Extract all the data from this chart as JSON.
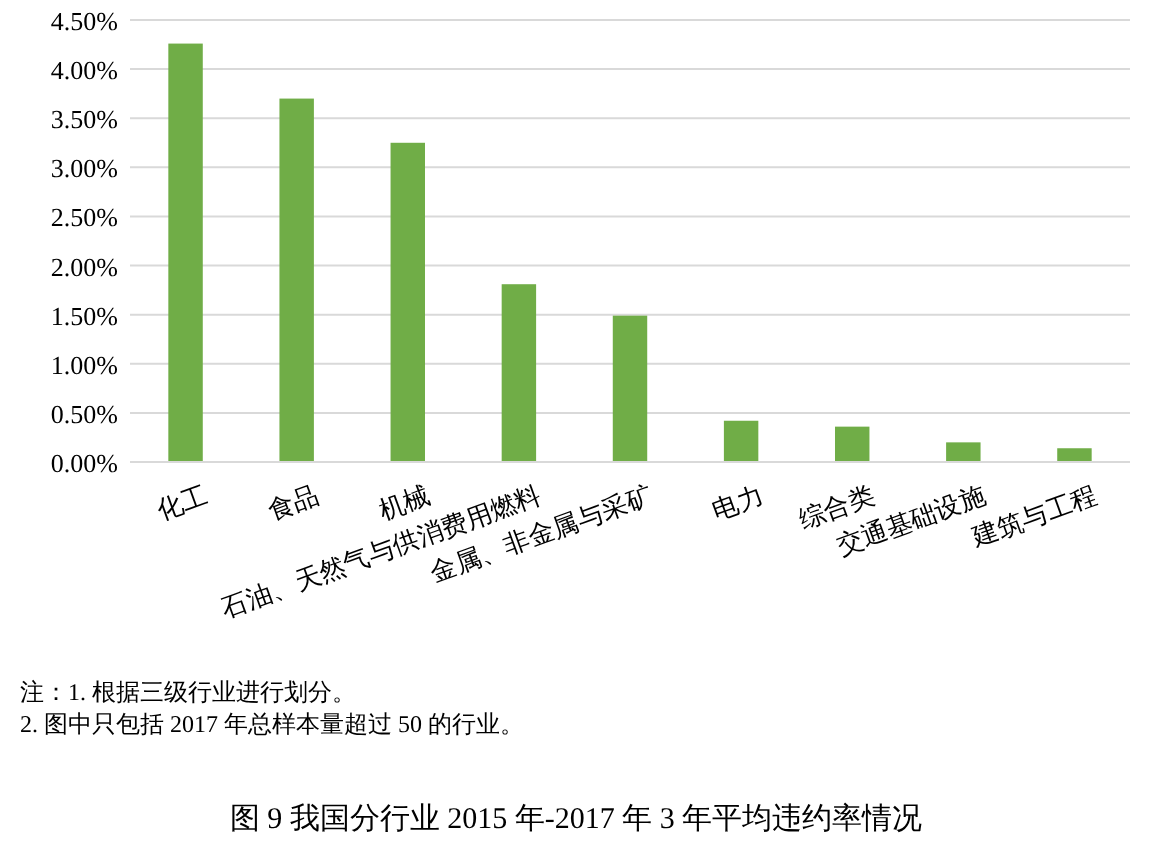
{
  "chart_data": {
    "type": "bar",
    "title": "图 9  我国分行业 2015 年-2017 年 3 年平均违约率情况",
    "categories": [
      "化工",
      "食品",
      "机械",
      "石油、天然气与供消费用燃料",
      "金属、非金属与采矿",
      "电力",
      "综合类",
      "交通基础设施",
      "建筑与工程"
    ],
    "values": [
      4.26,
      3.7,
      3.25,
      1.81,
      1.49,
      0.42,
      0.36,
      0.2,
      0.14
    ],
    "color": "#70ad47",
    "ylim": [
      0,
      4.5
    ],
    "yticks": [
      {
        "value": 0,
        "label": "0.00%"
      },
      {
        "value": 0.5,
        "label": "0.50%"
      },
      {
        "value": 1,
        "label": "1.00%"
      },
      {
        "value": 1.5,
        "label": "1.50%"
      },
      {
        "value": 2,
        "label": "2.00%"
      },
      {
        "value": 2.5,
        "label": "2.50%"
      },
      {
        "value": 3,
        "label": "3.00%"
      },
      {
        "value": 3.5,
        "label": "3.50%"
      },
      {
        "value": 4,
        "label": "4.00%"
      },
      {
        "value": 4.5,
        "label": "4.50%"
      }
    ],
    "grid": "y",
    "annotations": [
      "注：1. 根据三级行业进行划分。",
      "2. 图中只包括 2017 年总样本量超过 50 的行业。"
    ]
  }
}
